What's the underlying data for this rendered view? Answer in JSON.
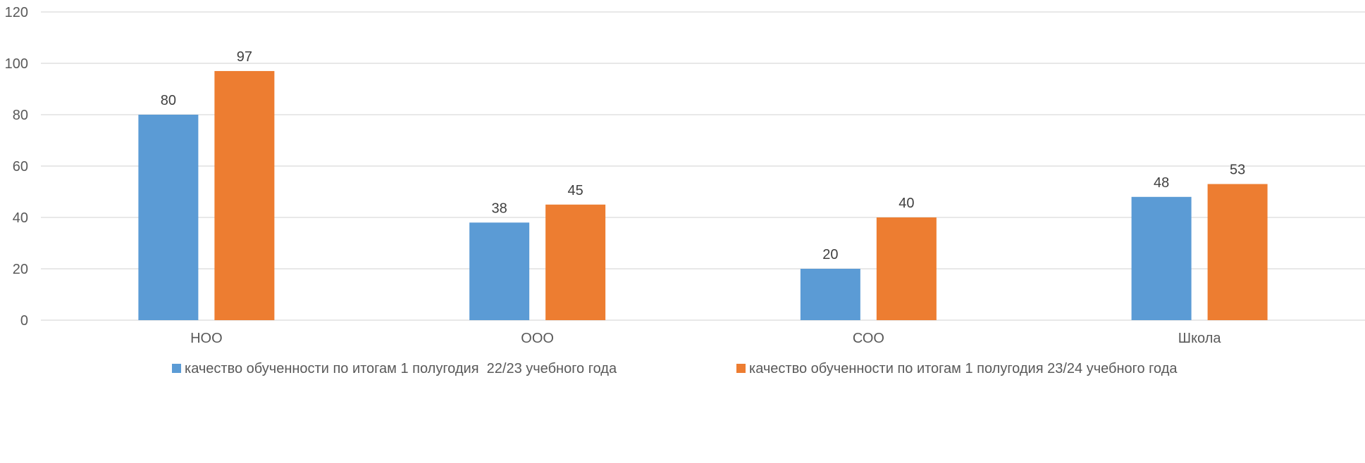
{
  "chart_data": {
    "type": "bar",
    "categories": [
      "НОО",
      "ООО",
      "СОО",
      "Школа"
    ],
    "series": [
      {
        "name": "качество обученности по итогам 1 полугодия  22/23 учебного года",
        "values": [
          80,
          38,
          20,
          48
        ],
        "color": "#5B9BD5"
      },
      {
        "name": "качество обученности по итогам 1 полугодия 23/24 учебного года",
        "values": [
          97,
          45,
          40,
          53
        ],
        "color": "#ED7D31"
      }
    ],
    "title": "",
    "xlabel": "",
    "ylabel": "",
    "ylim": [
      0,
      120
    ],
    "yticks": [
      0,
      20,
      40,
      60,
      80,
      100,
      120
    ],
    "grid": true,
    "legend_position": "bottom",
    "data_labels": true
  }
}
